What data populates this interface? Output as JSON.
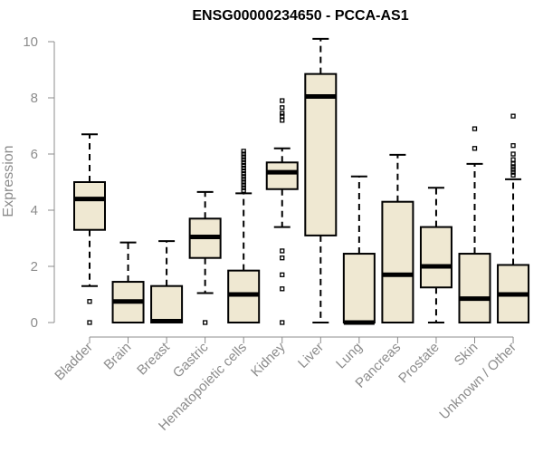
{
  "chart_data": {
    "type": "boxplot",
    "title": "ENSG00000234650 - PCCA-AS1",
    "xlabel": "",
    "ylabel": "Expression",
    "ylim": [
      0,
      10
    ],
    "yticks": [
      0,
      2,
      4,
      6,
      8,
      10
    ],
    "grid": false,
    "legend": "none",
    "box_fill": "#efe8d2",
    "box_stroke": "#000000",
    "axis_color": "#8c8c8c",
    "categories": [
      "Bladder",
      "Brain",
      "Breast",
      "Gastric",
      "Hematopoietic cells",
      "Kidney",
      "Liver",
      "Lung",
      "Pancreas",
      "Prostate",
      "Skin",
      "Unknown / Other"
    ],
    "boxes": [
      {
        "whislo": 1.3,
        "q1": 3.3,
        "median": 4.4,
        "q3": 5.0,
        "whishi": 6.7,
        "outliers": [
          0.0,
          0.75
        ]
      },
      {
        "whislo": 0.0,
        "q1": 0.0,
        "median": 0.75,
        "q3": 1.45,
        "whishi": 2.85,
        "outliers": []
      },
      {
        "whislo": 0.0,
        "q1": 0.0,
        "median": 0.05,
        "q3": 1.3,
        "whishi": 2.9,
        "outliers": []
      },
      {
        "whislo": 1.05,
        "q1": 2.3,
        "median": 3.05,
        "q3": 3.7,
        "whishi": 4.65,
        "outliers": [
          0.0
        ]
      },
      {
        "whislo": 0.0,
        "q1": 0.0,
        "median": 1.0,
        "q3": 1.85,
        "whishi": 4.6,
        "outliers": [
          4.7,
          4.8,
          4.9,
          5.0,
          5.1,
          5.2,
          5.3,
          5.4,
          5.5,
          5.6,
          5.7,
          5.8,
          5.9,
          6.0,
          6.1
        ]
      },
      {
        "whislo": 3.4,
        "q1": 4.75,
        "median": 5.35,
        "q3": 5.7,
        "whishi": 6.2,
        "outliers": [
          0.0,
          1.2,
          1.7,
          2.3,
          2.55,
          7.2,
          7.35,
          7.45,
          7.65,
          7.9
        ]
      },
      {
        "whislo": 0.0,
        "q1": 3.1,
        "median": 8.05,
        "q3": 8.85,
        "whishi": 10.1,
        "outliers": []
      },
      {
        "whislo": 0.0,
        "q1": 0.0,
        "median": 0.0,
        "q3": 2.45,
        "whishi": 5.2,
        "outliers": []
      },
      {
        "whislo": 0.0,
        "q1": 0.0,
        "median": 1.7,
        "q3": 4.3,
        "whishi": 5.97,
        "outliers": []
      },
      {
        "whislo": 0.0,
        "q1": 1.25,
        "median": 2.0,
        "q3": 3.4,
        "whishi": 4.8,
        "outliers": []
      },
      {
        "whislo": 0.0,
        "q1": 0.0,
        "median": 0.85,
        "q3": 2.45,
        "whishi": 5.65,
        "outliers": [
          6.2,
          6.9
        ]
      },
      {
        "whislo": 0.0,
        "q1": 0.0,
        "median": 1.0,
        "q3": 2.05,
        "whishi": 5.1,
        "outliers": [
          5.25,
          5.35,
          5.45,
          5.55,
          5.65,
          5.8,
          6.0,
          6.3,
          7.35
        ]
      }
    ]
  }
}
